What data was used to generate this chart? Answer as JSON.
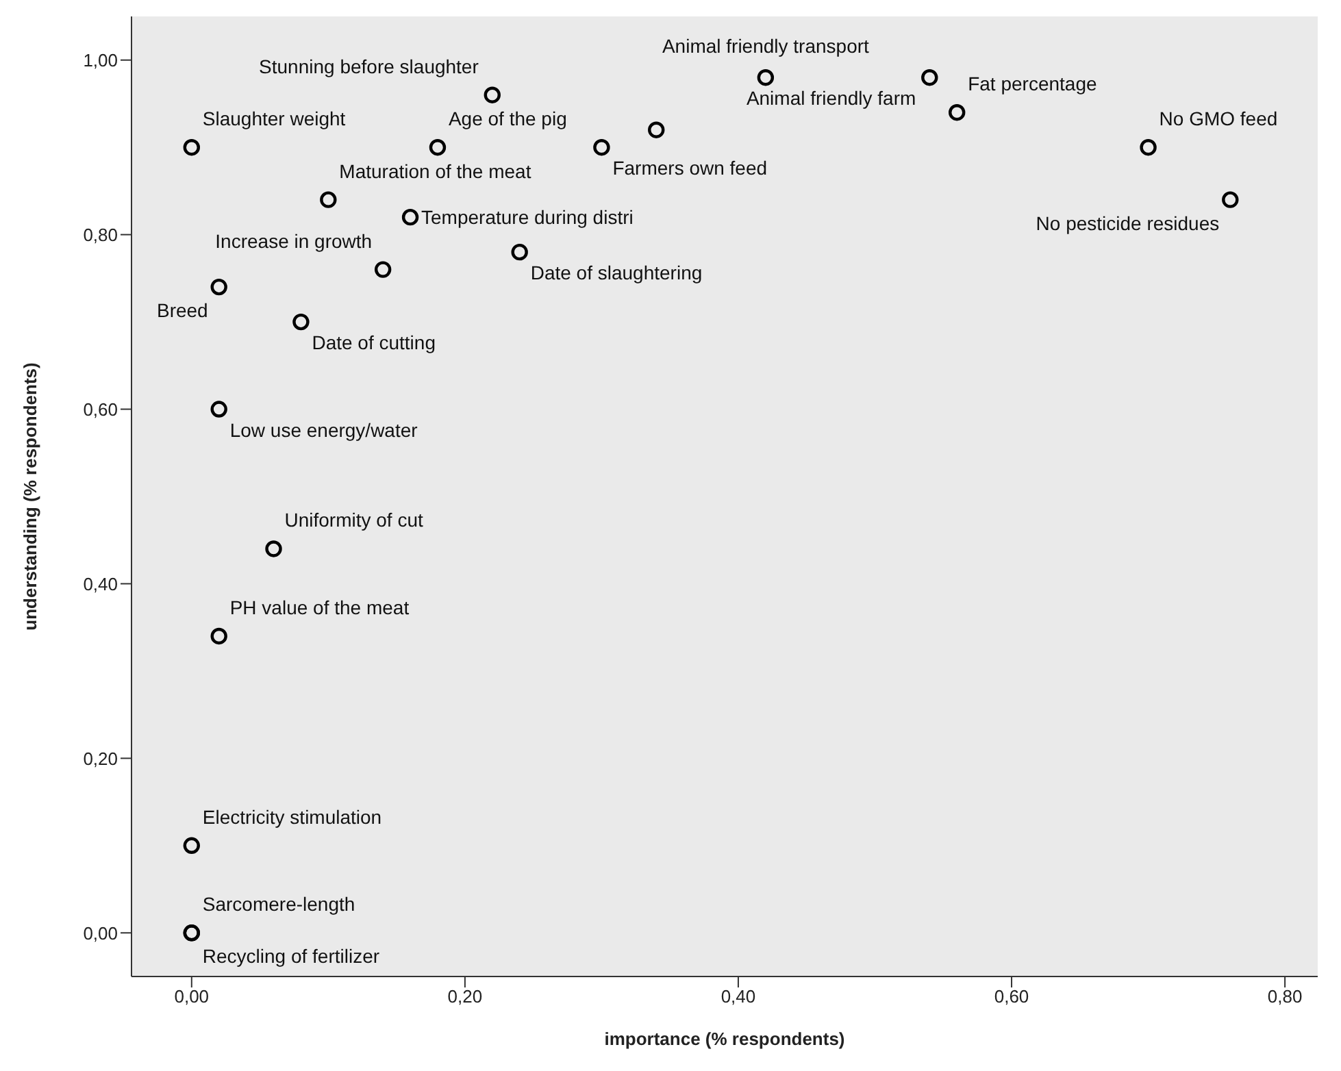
{
  "chart_data": {
    "type": "scatter",
    "xlabel": "importance (% respondents)",
    "ylabel": "understanding (% respondents)",
    "xlim": [
      -0.044,
      0.824
    ],
    "ylim": [
      -0.05,
      1.05
    ],
    "xticks": [
      {
        "value": 0,
        "label": "0,00"
      },
      {
        "value": 0.2,
        "label": "0,20"
      },
      {
        "value": 0.4,
        "label": "0,40"
      },
      {
        "value": 0.6,
        "label": "0,60"
      },
      {
        "value": 0.8,
        "label": "0,80"
      }
    ],
    "yticks": [
      {
        "value": 0,
        "label": "0,00"
      },
      {
        "value": 0.2,
        "label": "0,20"
      },
      {
        "value": 0.4,
        "label": "0,40"
      },
      {
        "value": 0.6,
        "label": "0,60"
      },
      {
        "value": 0.8,
        "label": "0,80"
      },
      {
        "value": 1,
        "label": "1,00"
      }
    ],
    "grid": false,
    "legend": false,
    "marker": "circle",
    "series": [
      {
        "color": "#000000",
        "x": [
          0,
          0.22,
          0.18,
          0.3,
          0.34,
          0.42,
          0.54,
          0.56,
          0.7,
          0.76,
          0.1,
          0.16,
          0.14,
          0.02,
          0.24,
          0.08,
          0.02,
          0.06,
          0.02,
          0,
          0,
          0
        ],
        "values": [
          0.9,
          0.96,
          0.9,
          0.9,
          0.92,
          0.98,
          0.98,
          0.94,
          0.9,
          0.84,
          0.84,
          0.82,
          0.76,
          0.74,
          0.78,
          0.7,
          0.6,
          0.44,
          0.34,
          0.1,
          0,
          0
        ],
        "value_labels": [
          "Slaughter weight",
          "Stunning before slaughter",
          "Age of the pig",
          "Farmers own feed",
          null,
          "Animal friendly transport",
          "Animal friendly farm",
          "Fat percentage",
          "No GMO feed",
          "No pesticide residues",
          "Maturation of the meat",
          "Temperature during distri",
          "Increase in growth",
          "Breed",
          "Date of slaughtering",
          "Date of cutting",
          "Low use energy/water",
          "Uniformity of cut",
          "PH value of the meat",
          "Electricity stimulation",
          "Sarcomere-length",
          "Recycling of fertilizer"
        ]
      }
    ]
  }
}
